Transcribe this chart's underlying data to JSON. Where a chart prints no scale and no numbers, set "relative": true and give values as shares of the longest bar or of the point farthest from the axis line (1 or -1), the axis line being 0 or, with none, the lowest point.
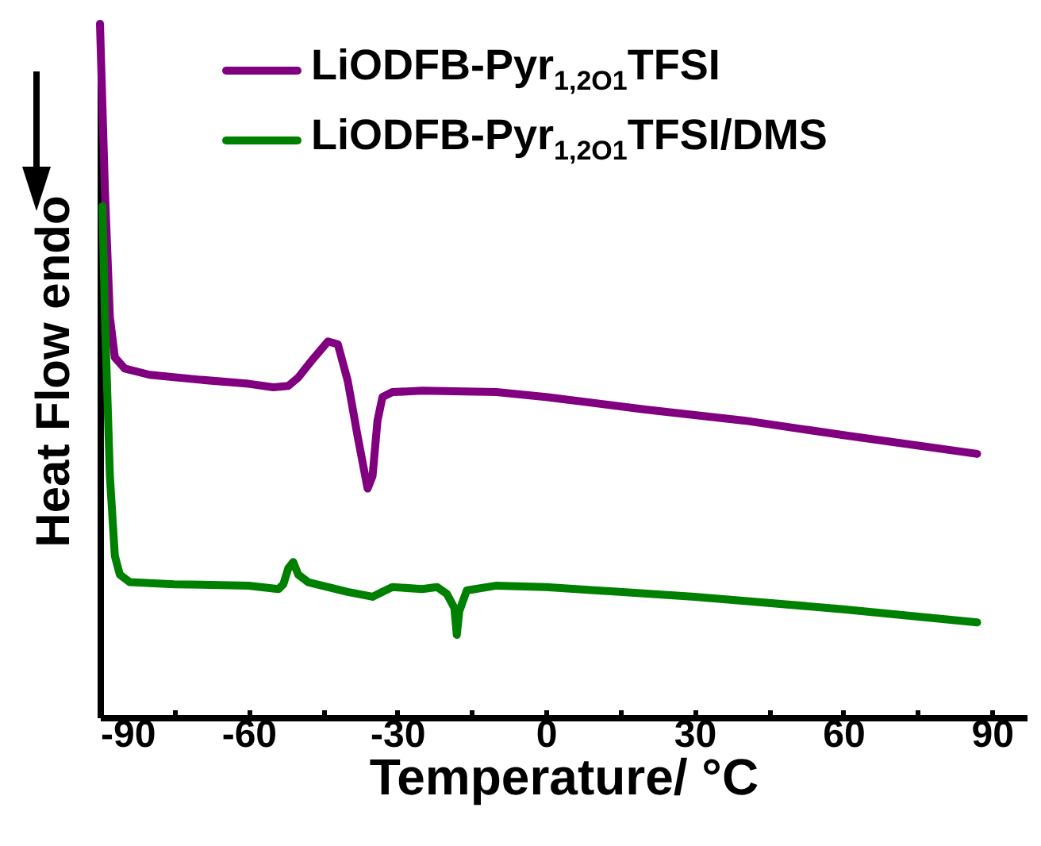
{
  "chart_data": {
    "type": "line",
    "relative": true,
    "xlabel": "Temperature/ °C",
    "ylabel": "Heat Flow endo",
    "xlim": [
      -90,
      97
    ],
    "xticks": [
      -90,
      {
        "value": -75,
        "label": null
      },
      -60,
      {
        "value": -45,
        "label": null
      },
      -30,
      {
        "value": -15,
        "label": null
      },
      0,
      {
        "value": 15,
        "label": null
      },
      30,
      {
        "value": 45,
        "label": null
      },
      60,
      {
        "value": 75,
        "label": null
      },
      90
    ],
    "tick_labels": "x",
    "legend": "top right",
    "series": [
      {
        "name": "LiODFB-Pyr$_{1,2O1}$TFSI",
        "color": "#800080",
        "x": [
          -90,
          -89,
          -88,
          -87,
          -85,
          -80,
          -70,
          -60,
          -55,
          -52,
          -50,
          -47,
          -44,
          -42,
          -40,
          -38,
          -36,
          -35,
          -34,
          -33,
          -31,
          -25,
          -10,
          0,
          20,
          40,
          60,
          87
        ],
        "values": [
          1.0,
          0.76,
          0.577,
          0.519,
          0.503,
          0.494,
          0.487,
          0.481,
          0.476,
          0.478,
          0.49,
          0.517,
          0.542,
          0.538,
          0.485,
          0.405,
          0.33,
          0.348,
          0.428,
          0.462,
          0.469,
          0.471,
          0.469,
          0.462,
          0.444,
          0.428,
          0.407,
          0.38
        ]
      },
      {
        "name": "LiODFB-Pyr$_{1,2O1}$TFSI/DMS",
        "color": "#008000",
        "x": [
          -89.5,
          -89,
          -88,
          -87,
          -86,
          -84,
          -75,
          -60,
          -54,
          -53,
          -52,
          -51,
          -50,
          -48,
          -40,
          -35,
          -33,
          -31,
          -25,
          -22,
          -20,
          -18.5,
          -18,
          -17.5,
          -16,
          -10,
          0,
          30,
          60,
          87
        ],
        "values": [
          0.737,
          0.577,
          0.348,
          0.233,
          0.206,
          0.195,
          0.192,
          0.19,
          0.185,
          0.192,
          0.215,
          0.224,
          0.206,
          0.195,
          0.181,
          0.174,
          0.181,
          0.188,
          0.185,
          0.188,
          0.178,
          0.158,
          0.119,
          0.153,
          0.183,
          0.19,
          0.188,
          0.174,
          0.156,
          0.137
        ]
      }
    ]
  }
}
